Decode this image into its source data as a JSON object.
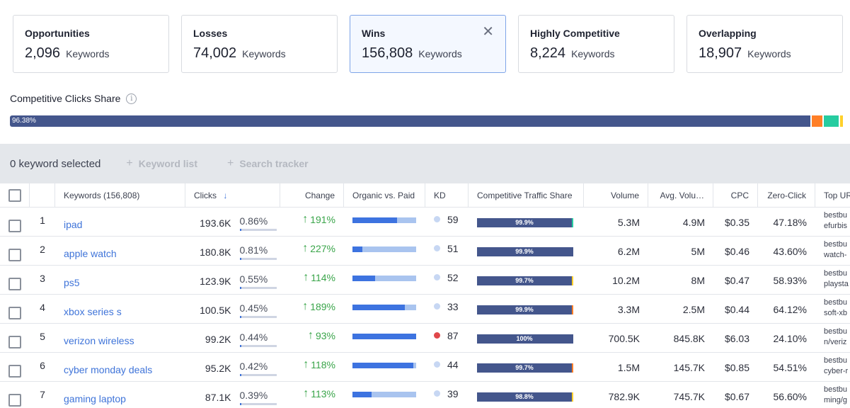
{
  "cards": [
    {
      "title": "Opportunities",
      "value": "2,096",
      "unit": "Keywords",
      "active": false
    },
    {
      "title": "Losses",
      "value": "74,002",
      "unit": "Keywords",
      "active": false
    },
    {
      "title": "Wins",
      "value": "156,808",
      "unit": "Keywords",
      "active": true
    },
    {
      "title": "Highly Competitive",
      "value": "8,224",
      "unit": "Keywords",
      "active": false
    },
    {
      "title": "Overlapping",
      "value": "18,907",
      "unit": "Keywords",
      "active": false
    }
  ],
  "close_glyph": "✕",
  "competitive_clicks_share": {
    "label": "Competitive Clicks Share",
    "info_glyph": "i",
    "main_label": "96.38%",
    "segments": [
      {
        "pct": 96.38,
        "color": "#44568c"
      },
      {
        "pct": 0.17,
        "color": "#ffffff"
      },
      {
        "pct": 1.27,
        "color": "#ff7f27"
      },
      {
        "pct": 0.17,
        "color": "#ffffff"
      },
      {
        "pct": 1.78,
        "color": "#26cca0"
      },
      {
        "pct": 0.17,
        "color": "#ffffff"
      },
      {
        "pct": 0.34,
        "color": "#ffd02a"
      }
    ]
  },
  "selection": {
    "text": "0 keyword selected",
    "plus": "+",
    "keyword_list": "Keyword list",
    "search_tracker": "Search tracker"
  },
  "headers": {
    "keywords": "Keywords (156,808)",
    "clicks": "Clicks",
    "sort_icon": "↓",
    "change": "Change",
    "organic_paid": "Organic vs. Paid",
    "kd": "KD",
    "cts": "Competitive Traffic Share",
    "volume": "Volume",
    "avg_volume": "Avg. Volu…",
    "cpc": "CPC",
    "zero_click": "Zero-Click",
    "top_url": "Top URL"
  },
  "up_arrow": "↑",
  "rows": [
    {
      "n": "1",
      "kw": "ipad",
      "clicks": "193.6K",
      "clicks_share": "0.86%",
      "change": "191%",
      "paid": 0.7,
      "kd": "59",
      "kd_color": "#c7d7f3",
      "cts": "99.9%",
      "cts_tail": "#26cca0",
      "volume": "5.3M",
      "avg": "4.9M",
      "cpc": "$0.35",
      "zc": "47.18%",
      "url1": "bestbu",
      "url2": "efurbis"
    },
    {
      "n": "2",
      "kw": "apple watch",
      "clicks": "180.8K",
      "clicks_share": "0.81%",
      "change": "227%",
      "paid": 0.15,
      "kd": "51",
      "kd_color": "#c7d7f3",
      "cts": "99.9%",
      "cts_tail": "#44568c",
      "volume": "6.2M",
      "avg": "5M",
      "cpc": "$0.46",
      "zc": "43.60%",
      "url1": "bestbu",
      "url2": "watch-"
    },
    {
      "n": "3",
      "kw": "ps5",
      "clicks": "123.9K",
      "clicks_share": "0.55%",
      "change": "114%",
      "paid": 0.35,
      "kd": "52",
      "kd_color": "#c7d7f3",
      "cts": "99.7%",
      "cts_tail": "#ffd02a",
      "volume": "10.2M",
      "avg": "8M",
      "cpc": "$0.47",
      "zc": "58.93%",
      "url1": "bestbu",
      "url2": "playsta"
    },
    {
      "n": "4",
      "kw": "xbox series s",
      "clicks": "100.5K",
      "clicks_share": "0.45%",
      "change": "189%",
      "paid": 0.82,
      "kd": "33",
      "kd_color": "#c7d7f3",
      "cts": "99.9%",
      "cts_tail": "#ff7f27",
      "volume": "3.3M",
      "avg": "2.5M",
      "cpc": "$0.44",
      "zc": "64.12%",
      "url1": "bestbu",
      "url2": "soft-xb"
    },
    {
      "n": "5",
      "kw": "verizon wireless",
      "clicks": "99.2K",
      "clicks_share": "0.44%",
      "change": "93%",
      "paid": 1.0,
      "kd": "87",
      "kd_color": "#e0474a",
      "cts": "100%",
      "cts_tail": "#44568c",
      "volume": "700.5K",
      "avg": "845.8K",
      "cpc": "$6.03",
      "zc": "24.10%",
      "url1": "bestbu",
      "url2": "n/veriz"
    },
    {
      "n": "6",
      "kw": "cyber monday deals",
      "clicks": "95.2K",
      "clicks_share": "0.42%",
      "change": "118%",
      "paid": 0.95,
      "kd": "44",
      "kd_color": "#c7d7f3",
      "cts": "99.7%",
      "cts_tail": "#ff7f27",
      "volume": "1.5M",
      "avg": "145.7K",
      "cpc": "$0.85",
      "zc": "54.51%",
      "url1": "bestbu",
      "url2": "cyber-r"
    },
    {
      "n": "7",
      "kw": "gaming laptop",
      "clicks": "87.1K",
      "clicks_share": "0.39%",
      "change": "113%",
      "paid": 0.3,
      "kd": "39",
      "kd_color": "#c7d7f3",
      "cts": "98.8%",
      "cts_tail": "#ffd02a",
      "volume": "782.9K",
      "avg": "745.7K",
      "cpc": "$0.67",
      "zc": "56.60%",
      "url1": "bestbu",
      "url2": "ming/g"
    }
  ]
}
